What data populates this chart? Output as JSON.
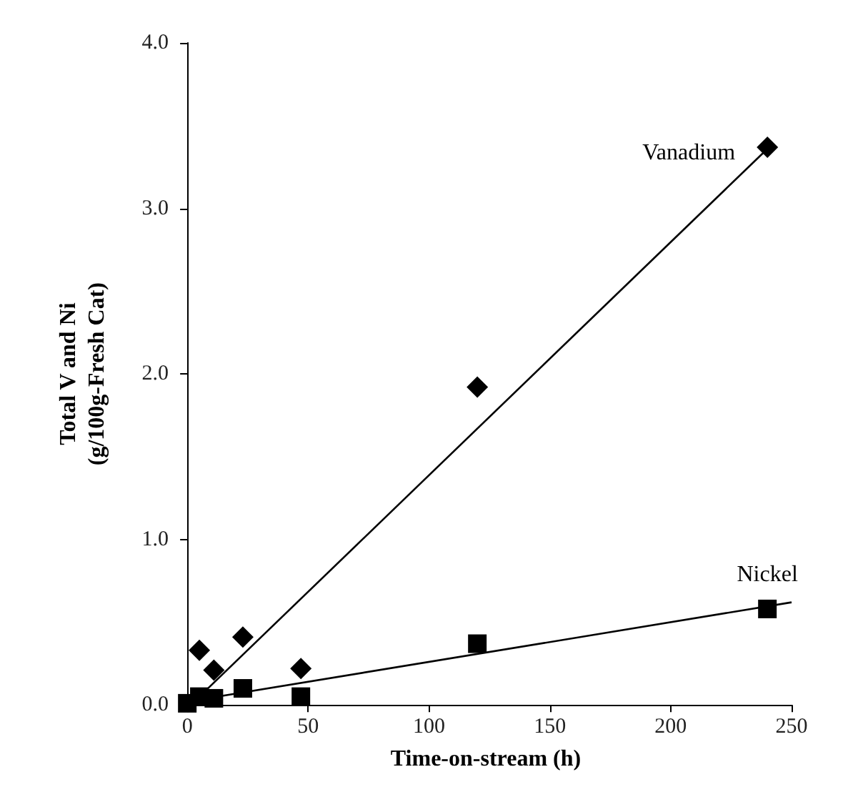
{
  "chart_data": {
    "type": "scatter",
    "xlabel": "Time-on-stream (h)",
    "ylabel": "Total V and Ni\n(g/100g-Fresh Cat)",
    "xlim": [
      -3,
      250
    ],
    "xticks": [
      0,
      50,
      100,
      150,
      200,
      250
    ],
    "ylim": [
      0,
      4
    ],
    "yticks": [
      {
        "value": 0,
        "label": "0.0"
      },
      {
        "value": 1,
        "label": "1.0"
      },
      {
        "value": 2,
        "label": "2.0"
      },
      {
        "value": 3,
        "label": "3.0"
      },
      {
        "value": 4,
        "label": "4.0"
      }
    ],
    "grid": false,
    "series": [
      {
        "name": "Vanadium",
        "marker": "diamond",
        "color": "#000000",
        "x": [
          5,
          11,
          23,
          47,
          120,
          240
        ],
        "values": [
          0.33,
          0.21,
          0.41,
          0.22,
          1.92,
          3.37
        ]
      },
      {
        "name": "Nickel",
        "marker": "square",
        "color": "#000000",
        "x": [
          0,
          5,
          11,
          23,
          47,
          120,
          240
        ],
        "values": [
          0.01,
          0.05,
          0.04,
          0.1,
          0.05,
          0.37,
          0.58
        ]
      },
      {
        "type": "line",
        "marker": "none",
        "line_style": "solid",
        "color": "#000000",
        "x": [
          5,
          240
        ],
        "values": [
          0.05,
          3.36
        ]
      },
      {
        "type": "line",
        "marker": "none",
        "line_style": "solid",
        "color": "#000000",
        "x": [
          0,
          250
        ],
        "values": [
          0.02,
          0.62
        ]
      }
    ]
  }
}
